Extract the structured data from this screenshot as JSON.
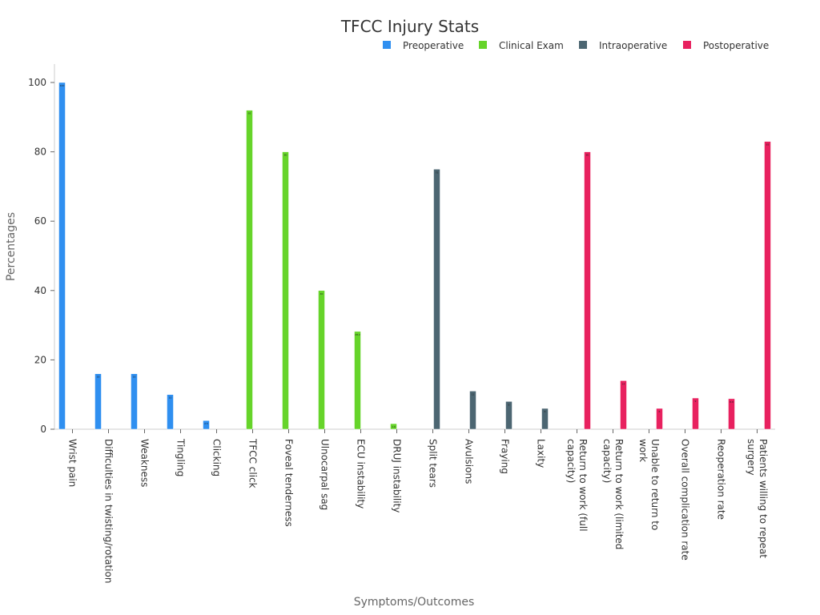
{
  "chart_data": {
    "type": "bar",
    "title": "TFCC Injury Stats",
    "xlabel": "Symptoms/Outcomes",
    "ylabel": "Percentages",
    "ylim": [
      0,
      105
    ],
    "yticks": [
      0,
      20,
      40,
      60,
      80,
      100
    ],
    "grid": false,
    "legend_position": "top-right",
    "categories": [
      "Wrist pain",
      "Difficulties in twisting/rotation",
      "Weakness",
      "Tingling",
      "Clicking",
      "TFCC click",
      "Foveal tenderness",
      "Ulnocarpal sag",
      "ECU instability",
      "DRUJ instability",
      "Split tears",
      "Avulsions",
      "Fraying",
      "Laxity",
      "Return to work (full capacity)",
      "Return to work (limited capacity)",
      "Unable to return to work",
      "Overall complication rate",
      "Reoperation rate",
      "Patients willing to repeat surgery"
    ],
    "category_lines": [
      [
        "Wrist pain"
      ],
      [
        "Difficulties in twisting/rotation"
      ],
      [
        "Weakness"
      ],
      [
        "Tingling"
      ],
      [
        "Clicking"
      ],
      [
        "TFCC click"
      ],
      [
        "Foveal tenderness"
      ],
      [
        "Ulnocarpal sag"
      ],
      [
        "ECU instability"
      ],
      [
        "DRUJ instability"
      ],
      [
        "Split tears"
      ],
      [
        "Avulsions"
      ],
      [
        "Fraying"
      ],
      [
        "Laxity"
      ],
      [
        "Return to work (full",
        "capacity)"
      ],
      [
        "Return to work (limited",
        "capacity)"
      ],
      [
        "Unable to return to",
        "work"
      ],
      [
        "Overall complication rate"
      ],
      [
        "Reoperation rate"
      ],
      [
        "Patients willing to repeat",
        "surgery"
      ]
    ],
    "series": [
      {
        "name": "Preoperative",
        "color": "#2f8ff0",
        "values": [
          100,
          16,
          16,
          10,
          2.5,
          null,
          null,
          null,
          null,
          null,
          null,
          null,
          null,
          null,
          null,
          null,
          null,
          null,
          null,
          null
        ]
      },
      {
        "name": "Clinical Exam",
        "color": "#66d42a",
        "values": [
          null,
          null,
          null,
          null,
          null,
          92,
          80,
          40,
          28.2,
          1.6,
          null,
          null,
          null,
          null,
          null,
          null,
          null,
          null,
          null,
          null
        ]
      },
      {
        "name": "Intraoperative",
        "color": "#4c6672",
        "values": [
          null,
          null,
          null,
          null,
          null,
          null,
          null,
          null,
          null,
          null,
          75,
          11,
          8,
          6,
          null,
          null,
          null,
          null,
          null,
          null
        ]
      },
      {
        "name": "Postoperative",
        "color": "#e8215f",
        "values": [
          null,
          null,
          null,
          null,
          null,
          null,
          null,
          null,
          null,
          null,
          null,
          null,
          null,
          null,
          80,
          14,
          6,
          9,
          8.8,
          83
        ]
      }
    ]
  }
}
